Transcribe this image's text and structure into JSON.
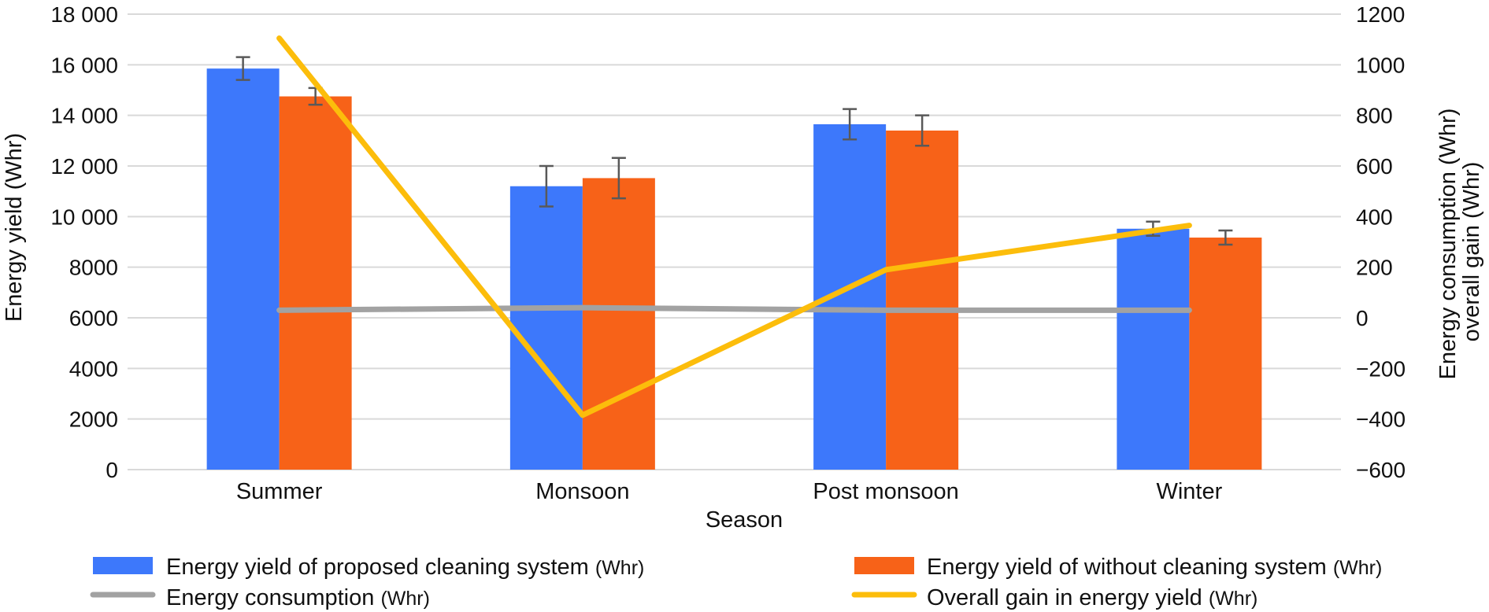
{
  "chart_data": {
    "type": "bar",
    "categories": [
      "Summer",
      "Monsoon",
      "Post monsoon",
      "Winter"
    ],
    "xlabel": "Season",
    "ylabel": "Energy yield (Whr)",
    "y2label_line1": "Energy consumption (Whr)",
    "y2label_line2": "overall gain (Whr)",
    "ylim": [
      0,
      18000
    ],
    "y_ticks": [
      0,
      2000,
      4000,
      6000,
      8000,
      10000,
      12000,
      14000,
      16000,
      18000
    ],
    "y_tick_labels": [
      "0",
      "2000",
      "4000",
      "6000",
      "8000",
      "10 000",
      "12 000",
      "14 000",
      "16 000",
      "18 000"
    ],
    "y2lim": [
      -600,
      1200
    ],
    "y2_ticks": [
      -600,
      -400,
      -200,
      0,
      200,
      400,
      600,
      800,
      1000,
      1200
    ],
    "y2_tick_labels": [
      "−600",
      "−400",
      "−200",
      "0",
      "200",
      "400",
      "600",
      "800",
      "1000",
      "1200"
    ],
    "grid": true,
    "legend_position": "bottom",
    "bar_series": [
      {
        "name": "Energy yield of proposed cleaning system",
        "unit": "(Whr)",
        "color": "#3d78fb",
        "values": [
          15850,
          11200,
          13650,
          9520
        ],
        "error": [
          450,
          800,
          600,
          280
        ]
      },
      {
        "name": "Energy yield of without cleaning system",
        "unit": "(Whr)",
        "color": "#f76218",
        "values": [
          14750,
          11520,
          13400,
          9170
        ],
        "error": [
          330,
          800,
          600,
          280
        ]
      }
    ],
    "line_series": [
      {
        "name": "Energy consumption",
        "unit": "(Whr)",
        "color": "#a2a2a2",
        "axis": "right",
        "values": [
          30,
          40,
          30,
          30
        ]
      },
      {
        "name": "Overall gain in energy yield",
        "unit": "(Whr)",
        "color": "#fcbd0b",
        "axis": "right",
        "values": [
          1105,
          -385,
          190,
          365
        ]
      }
    ]
  }
}
